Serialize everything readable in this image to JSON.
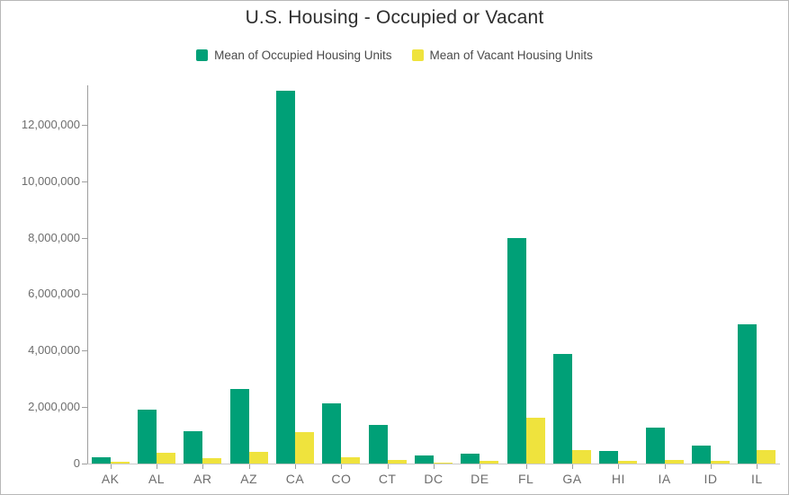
{
  "frame": {
    "background": "#FFFFFF",
    "border_color": "#B8B8B8"
  },
  "chart_data": {
    "type": "bar",
    "title": "U.S. Housing - Occupied or Vacant",
    "categories": [
      "AK",
      "AL",
      "AR",
      "AZ",
      "CA",
      "CO",
      "CT",
      "DC",
      "DE",
      "FL",
      "GA",
      "HI",
      "IA",
      "ID",
      "IL"
    ],
    "series": [
      {
        "name": "Mean of Occupied Housing Units",
        "color": "#00A077",
        "values": [
          235000,
          1900000,
          1160000,
          2650000,
          13200000,
          2130000,
          1370000,
          290000,
          360000,
          7980000,
          3870000,
          460000,
          1280000,
          625000,
          4930000
        ]
      },
      {
        "name": "Mean of Vacant Housing Units",
        "color": "#EFE33D",
        "values": [
          55000,
          385000,
          205000,
          400000,
          1100000,
          225000,
          120000,
          30000,
          80000,
          1630000,
          470000,
          85000,
          140000,
          100000,
          480000
        ]
      }
    ],
    "xlabel": "",
    "ylabel": "",
    "ylim": [
      0,
      13400000
    ],
    "y_ticks": [
      {
        "value": 0,
        "label": "0"
      },
      {
        "value": 2000000,
        "label": "2,000,000"
      },
      {
        "value": 4000000,
        "label": "4,000,000"
      },
      {
        "value": 6000000,
        "label": "6,000,000"
      },
      {
        "value": 8000000,
        "label": "8,000,000"
      },
      {
        "value": 10000000,
        "label": "10,000,000"
      },
      {
        "value": 12000000,
        "label": "12,000,000"
      }
    ],
    "grid": false,
    "legend_position": "top-center",
    "colors": {
      "title_text": "#2E2E2E",
      "legend_text": "#4A4A4A",
      "axis_label_text": "#6D6D6D",
      "axis_line": "#9E9E9E",
      "baseline": "#C9C9C9"
    }
  }
}
